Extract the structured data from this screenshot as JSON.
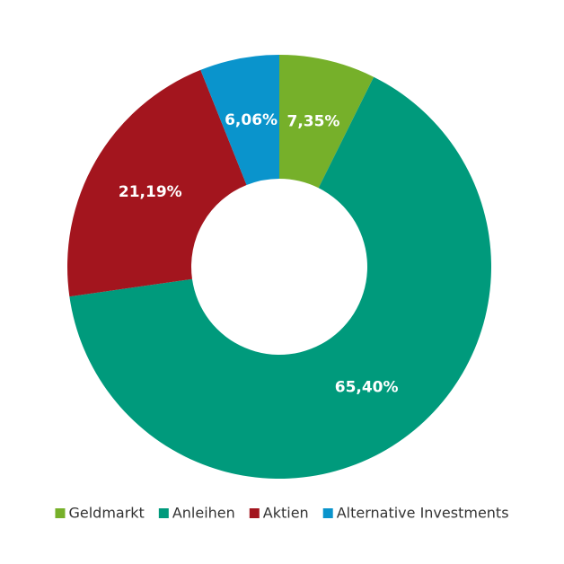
{
  "chart_data": {
    "type": "donut",
    "categories": [
      "Geldmarkt",
      "Anleihen",
      "Aktien",
      "Alternative Investments"
    ],
    "values": [
      7.35,
      65.4,
      21.19,
      6.06
    ],
    "value_labels": [
      "7,35%",
      "65,40%",
      "21,19%",
      "6,06%"
    ],
    "colors": [
      "#76b02a",
      "#009a7c",
      "#a3151e",
      "#0a94cc"
    ],
    "legend": "bottom"
  }
}
